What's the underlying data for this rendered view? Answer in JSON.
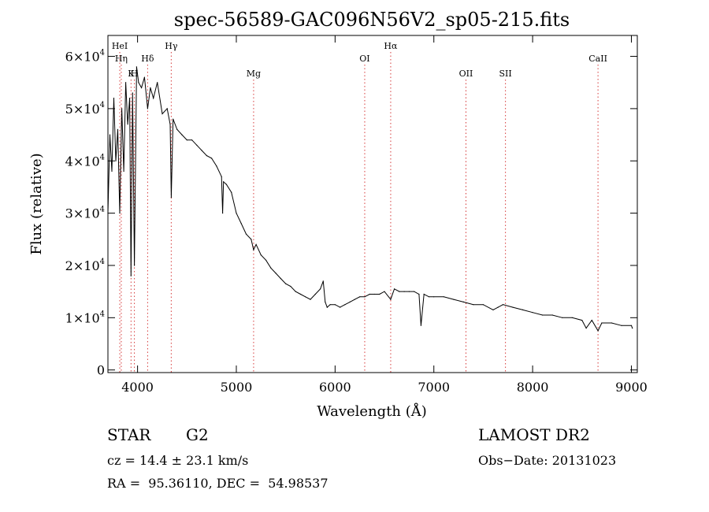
{
  "chart_data": {
    "type": "line",
    "title": "spec-56589-GAC096N56V2_sp05-215.fits",
    "xlabel": "Wavelength (Å)",
    "ylabel": "Flux (relative)",
    "xlim": [
      3700,
      9060
    ],
    "ylim": [
      -500,
      64000
    ],
    "x_ticks": [
      4000,
      5000,
      6000,
      7000,
      8000,
      9000
    ],
    "x_tick_labels": [
      "4000",
      "5000",
      "6000",
      "7000",
      "8000",
      "9000"
    ],
    "y_ticks": [
      0,
      10000,
      20000,
      30000,
      40000,
      50000,
      60000
    ],
    "y_tick_labels": [
      {
        "base": "0",
        "exp": ""
      },
      {
        "base": "1×10",
        "exp": "4"
      },
      {
        "base": "2×10",
        "exp": "4"
      },
      {
        "base": "3×10",
        "exp": "4"
      },
      {
        "base": "4×10",
        "exp": "4"
      },
      {
        "base": "5×10",
        "exp": "4"
      },
      {
        "base": "6×10",
        "exp": "4"
      }
    ],
    "lines": [
      {
        "label": "HeI",
        "x": 3820,
        "row": 0
      },
      {
        "label": "Hη",
        "x": 3835,
        "row": 1
      },
      {
        "label": "K",
        "x": 3934,
        "row": 2
      },
      {
        "label": "H",
        "x": 3968,
        "row": 2
      },
      {
        "label": "Hδ",
        "x": 4102,
        "row": 1
      },
      {
        "label": "Hγ",
        "x": 4341,
        "row": 0
      },
      {
        "label": "Mg",
        "x": 5175,
        "row": 2
      },
      {
        "label": "OI",
        "x": 6300,
        "row": 1
      },
      {
        "label": "Hα",
        "x": 6563,
        "row": 0
      },
      {
        "label": "OII",
        "x": 7325,
        "row": 2
      },
      {
        "label": "SII",
        "x": 7725,
        "row": 2
      },
      {
        "label": "CaII",
        "x": 8662,
        "row": 1
      }
    ],
    "series": [
      {
        "x": [
          3700,
          3720,
          3740,
          3760,
          3780,
          3800,
          3820,
          3840,
          3860,
          3880,
          3900,
          3920,
          3934,
          3950,
          3968,
          3990,
          4010,
          4040,
          4070,
          4102,
          4130,
          4160,
          4200,
          4250,
          4300,
          4330,
          4341,
          4360,
          4400,
          4450,
          4500,
          4550,
          4600,
          4650,
          4700,
          4750,
          4800,
          4850,
          4861,
          4870,
          4900,
          4950,
          5000,
          5050,
          5100,
          5150,
          5175,
          5200,
          5250,
          5300,
          5350,
          5400,
          5450,
          5500,
          5550,
          5600,
          5650,
          5700,
          5750,
          5800,
          5850,
          5880,
          5900,
          5920,
          5950,
          6000,
          6050,
          6100,
          6150,
          6200,
          6250,
          6300,
          6350,
          6400,
          6450,
          6500,
          6563,
          6600,
          6650,
          6700,
          6750,
          6800,
          6850,
          6870,
          6900,
          6950,
          7000,
          7100,
          7200,
          7300,
          7400,
          7500,
          7600,
          7650,
          7700,
          7800,
          7900,
          8000,
          8100,
          8200,
          8300,
          8400,
          8500,
          8542,
          8600,
          8662,
          8700,
          8800,
          8900,
          9000,
          9010
        ],
        "y": [
          30000,
          45000,
          38000,
          52000,
          40000,
          46000,
          30000,
          50000,
          38000,
          55000,
          47000,
          52000,
          18000,
          53000,
          20000,
          58000,
          55000,
          54000,
          56000,
          50000,
          54000,
          52000,
          55000,
          49000,
          50000,
          47000,
          33000,
          48000,
          46000,
          45000,
          44000,
          44000,
          43000,
          42000,
          41000,
          40500,
          39000,
          37000,
          30000,
          36000,
          35500,
          34000,
          30000,
          28000,
          26000,
          25000,
          23000,
          24000,
          22000,
          21000,
          19500,
          18500,
          17500,
          16500,
          16000,
          15000,
          14500,
          14000,
          13500,
          14500,
          15500,
          17000,
          13000,
          12000,
          12500,
          12500,
          12000,
          12500,
          13000,
          13500,
          14000,
          14000,
          14500,
          14500,
          14500,
          15000,
          13500,
          15500,
          15000,
          15000,
          15000,
          15000,
          14500,
          8500,
          14500,
          14000,
          14000,
          14000,
          13500,
          13000,
          12500,
          12500,
          11500,
          12000,
          12500,
          12000,
          11500,
          11000,
          10500,
          10500,
          10000,
          10000,
          9500,
          8000,
          9500,
          7500,
          9000,
          9000,
          8500,
          8500,
          8000
        ]
      }
    ]
  },
  "info": {
    "object_class": "STAR",
    "subclass": "G2",
    "survey": "LAMOST DR2",
    "cz": "cz = 14.4 ± 23.1 km/s",
    "obs_date": "Obs−Date: 20131023",
    "coords": "RA =  95.36110, DEC =  54.98537"
  }
}
